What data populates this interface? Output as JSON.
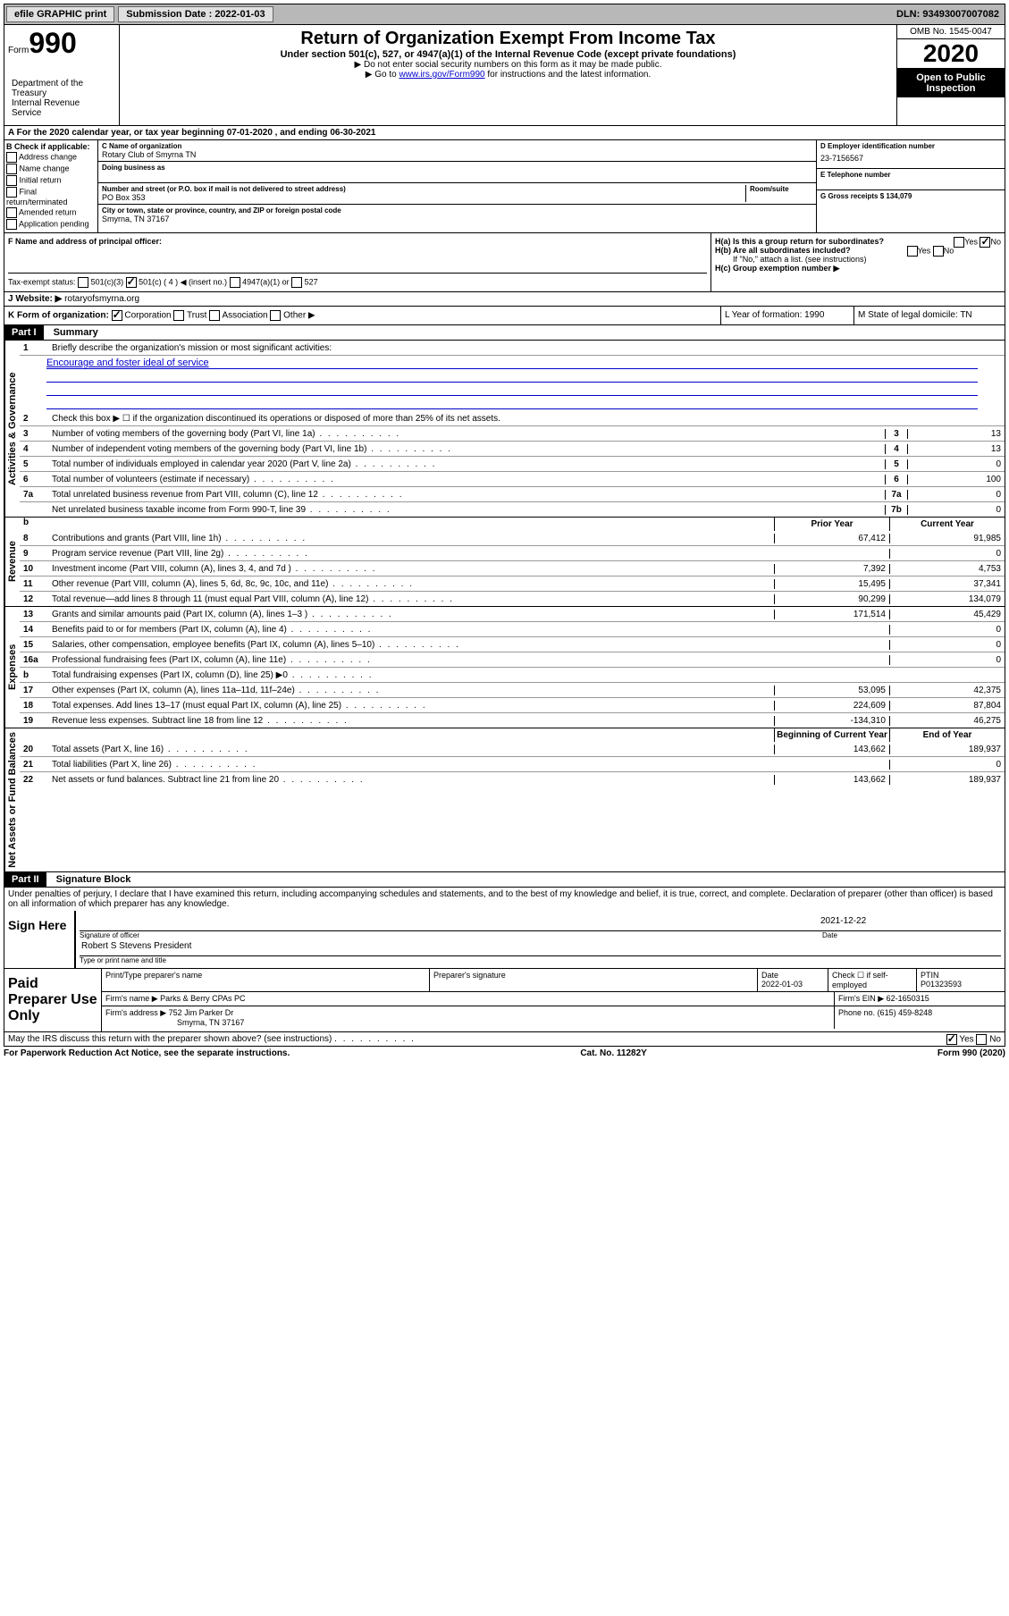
{
  "topbar": {
    "efile": "efile GRAPHIC print",
    "submission_label": "Submission Date : 2022-01-03",
    "dln_label": "DLN: 93493007007082"
  },
  "header": {
    "form_word": "Form",
    "form_num": "990",
    "dept": "Department of the Treasury\nInternal Revenue Service",
    "title": "Return of Organization Exempt From Income Tax",
    "subtitle": "Under section 501(c), 527, or 4947(a)(1) of the Internal Revenue Code (except private foundations)",
    "note1": "▶ Do not enter social security numbers on this form as it may be made public.",
    "note2_pre": "▶ Go to ",
    "note2_link": "www.irs.gov/Form990",
    "note2_post": " for instructions and the latest information.",
    "omb": "OMB No. 1545-0047",
    "year": "2020",
    "open": "Open to Public Inspection"
  },
  "rowA": "A For the 2020 calendar year, or tax year beginning 07-01-2020    , and ending 06-30-2021",
  "colB": {
    "label": "B Check if applicable:",
    "opts": [
      "Address change",
      "Name change",
      "Initial return",
      "Final return/terminated",
      "Amended return",
      "Application pending"
    ]
  },
  "colC": {
    "name_label": "C Name of organization",
    "name": "Rotary Club of Smyrna TN",
    "dba_label": "Doing business as",
    "addr_label": "Number and street (or P.O. box if mail is not delivered to street address)",
    "addr": "PO Box 353",
    "room_label": "Room/suite",
    "city_label": "City or town, state or province, country, and ZIP or foreign postal code",
    "city": "Smyrna, TN  37167"
  },
  "colD": {
    "ein_label": "D Employer identification number",
    "ein": "23-7156567",
    "phone_label": "E Telephone number",
    "gross_label": "G Gross receipts $ 134,079"
  },
  "rowF": {
    "f_label": "F  Name and address of principal officer:",
    "ha": "H(a)  Is this a group return for subordinates?",
    "hb": "H(b)  Are all subordinates included?",
    "hb_note": "If \"No,\" attach a list. (see instructions)",
    "hc": "H(c)  Group exemption number ▶"
  },
  "taxExempt": {
    "label": "Tax-exempt status:",
    "c3": "501(c)(3)",
    "c": "501(c) ( 4 ) ◀ (insert no.)",
    "a1": "4947(a)(1) or",
    "s527": "527"
  },
  "rowJ": {
    "label": "J Website: ▶",
    "val": "rotaryofsmyrna.org"
  },
  "rowK": {
    "k": "K Form of organization:",
    "corp": "Corporation",
    "trust": "Trust",
    "assoc": "Association",
    "other": "Other ▶",
    "l": "L Year of formation: 1990",
    "m": "M State of legal domicile: TN"
  },
  "part1": {
    "header": "Part I",
    "title": "Summary",
    "line1": "Briefly describe the organization's mission or most significant activities:",
    "mission": "Encourage and foster ideal of service",
    "line2": "Check this box ▶ ☐  if the organization discontinued its operations or disposed of more than 25% of its net assets.",
    "sideA": "Activities & Governance",
    "sideR": "Revenue",
    "sideE": "Expenses",
    "sideN": "Net Assets or Fund Balances",
    "lines_gov": [
      {
        "n": "3",
        "d": "Number of voting members of the governing body (Part VI, line 1a)",
        "b": "3",
        "v": "13"
      },
      {
        "n": "4",
        "d": "Number of independent voting members of the governing body (Part VI, line 1b)",
        "b": "4",
        "v": "13"
      },
      {
        "n": "5",
        "d": "Total number of individuals employed in calendar year 2020 (Part V, line 2a)",
        "b": "5",
        "v": "0"
      },
      {
        "n": "6",
        "d": "Total number of volunteers (estimate if necessary)",
        "b": "6",
        "v": "100"
      },
      {
        "n": "7a",
        "d": "Total unrelated business revenue from Part VIII, column (C), line 12",
        "b": "7a",
        "v": "0"
      },
      {
        "n": "",
        "d": "Net unrelated business taxable income from Form 990-T, line 39",
        "b": "7b",
        "v": "0"
      }
    ],
    "col_prior": "Prior Year",
    "col_current": "Current Year",
    "lines_rev": [
      {
        "n": "8",
        "d": "Contributions and grants (Part VIII, line 1h)",
        "p": "67,412",
        "c": "91,985"
      },
      {
        "n": "9",
        "d": "Program service revenue (Part VIII, line 2g)",
        "p": "",
        "c": "0"
      },
      {
        "n": "10",
        "d": "Investment income (Part VIII, column (A), lines 3, 4, and 7d )",
        "p": "7,392",
        "c": "4,753"
      },
      {
        "n": "11",
        "d": "Other revenue (Part VIII, column (A), lines 5, 6d, 8c, 9c, 10c, and 11e)",
        "p": "15,495",
        "c": "37,341"
      },
      {
        "n": "12",
        "d": "Total revenue—add lines 8 through 11 (must equal Part VIII, column (A), line 12)",
        "p": "90,299",
        "c": "134,079"
      }
    ],
    "lines_exp": [
      {
        "n": "13",
        "d": "Grants and similar amounts paid (Part IX, column (A), lines 1–3 )",
        "p": "171,514",
        "c": "45,429"
      },
      {
        "n": "14",
        "d": "Benefits paid to or for members (Part IX, column (A), line 4)",
        "p": "",
        "c": "0"
      },
      {
        "n": "15",
        "d": "Salaries, other compensation, employee benefits (Part IX, column (A), lines 5–10)",
        "p": "",
        "c": "0"
      },
      {
        "n": "16a",
        "d": "Professional fundraising fees (Part IX, column (A), line 11e)",
        "p": "",
        "c": "0"
      },
      {
        "n": "b",
        "d": "Total fundraising expenses (Part IX, column (D), line 25) ▶0",
        "p": "shaded",
        "c": "shaded"
      },
      {
        "n": "17",
        "d": "Other expenses (Part IX, column (A), lines 11a–11d, 11f–24e)",
        "p": "53,095",
        "c": "42,375"
      },
      {
        "n": "18",
        "d": "Total expenses. Add lines 13–17 (must equal Part IX, column (A), line 25)",
        "p": "224,609",
        "c": "87,804"
      },
      {
        "n": "19",
        "d": "Revenue less expenses. Subtract line 18 from line 12",
        "p": "-134,310",
        "c": "46,275"
      }
    ],
    "col_begin": "Beginning of Current Year",
    "col_end": "End of Year",
    "lines_net": [
      {
        "n": "20",
        "d": "Total assets (Part X, line 16)",
        "p": "143,662",
        "c": "189,937"
      },
      {
        "n": "21",
        "d": "Total liabilities (Part X, line 26)",
        "p": "",
        "c": "0"
      },
      {
        "n": "22",
        "d": "Net assets or fund balances. Subtract line 21 from line 20",
        "p": "143,662",
        "c": "189,937"
      }
    ]
  },
  "part2": {
    "header": "Part II",
    "title": "Signature Block",
    "decl": "Under penalties of perjury, I declare that I have examined this return, including accompanying schedules and statements, and to the best of my knowledge and belief, it is true, correct, and complete. Declaration of preparer (other than officer) is based on all information of which preparer has any knowledge.",
    "sign_here": "Sign Here",
    "sig_officer": "Signature of officer",
    "date": "Date",
    "date_val": "2021-12-22",
    "name": "Robert S Stevens President",
    "name_label": "Type or print name and title",
    "paid": "Paid Preparer Use Only",
    "p_name_label": "Print/Type preparer's name",
    "p_sig_label": "Preparer's signature",
    "p_date_label": "Date",
    "p_date": "2022-01-03",
    "p_check": "Check ☐ if self-employed",
    "ptin_label": "PTIN",
    "ptin": "P01323593",
    "firm_name_label": "Firm's name    ▶",
    "firm_name": "Parks & Berry CPAs PC",
    "firm_ein_label": "Firm's EIN ▶",
    "firm_ein": "62-1650315",
    "firm_addr_label": "Firm's address ▶",
    "firm_addr": "752 Jim Parker Dr",
    "firm_city": "Smyrna, TN  37167",
    "phone_label": "Phone no.",
    "phone": "(615) 459-8248",
    "may_irs": "May the IRS discuss this return with the preparer shown above? (see instructions)",
    "yes": "Yes",
    "no": "No"
  },
  "footer": {
    "pra": "For Paperwork Reduction Act Notice, see the separate instructions.",
    "cat": "Cat. No. 11282Y",
    "form": "Form 990 (2020)"
  }
}
